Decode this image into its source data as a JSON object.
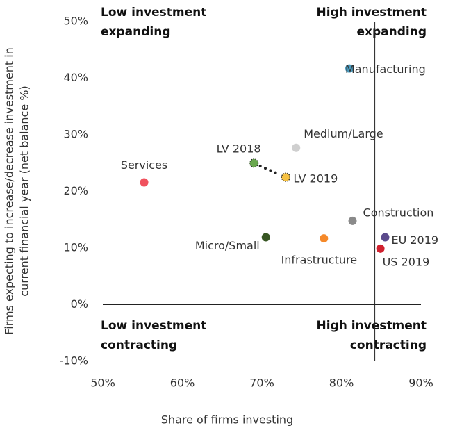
{
  "chart_data": {
    "type": "scatter",
    "x_label": "Share of firms investing",
    "y_label": [
      "Firms expecting to increase/decrease investment in",
      "current financial year  (net balance %)"
    ],
    "annotations": [
      "Low investment",
      "expanding",
      "High investment",
      "expanding",
      "Low investment",
      "contracting",
      "High investment",
      "contracting"
    ],
    "labels": [
      "Manufacturing",
      "Medium/Large",
      "LV 2018",
      "LV 2019",
      "Services",
      "Construction",
      "Micro/Small",
      "Infrastructure",
      "EU 2019",
      "US 2019"
    ],
    "x": [
      81.0,
      74.3,
      69.0,
      73.0,
      55.2,
      81.4,
      70.5,
      77.8,
      85.5,
      84.9
    ],
    "values": [
      41.7,
      27.7,
      25.0,
      22.5,
      21.6,
      14.8,
      11.9,
      11.7,
      11.9,
      9.9
    ],
    "colors": [
      "#4a9cc0",
      "#cfcfcf",
      "#6aa84f",
      "#f6c142",
      "#f0525e",
      "#8a8a8a",
      "#375623",
      "#f5892a",
      "#5b4a8c",
      "#d0202e"
    ],
    "dotted_outline": [
      false,
      false,
      true,
      true,
      false,
      false,
      false,
      false,
      false,
      false
    ],
    "vline": 84.2,
    "xlim": [
      50,
      90
    ],
    "xticks": [
      {
        "value": 50,
        "label": "50%"
      },
      {
        "value": 60,
        "label": "60%"
      },
      {
        "value": 70,
        "label": "70%"
      },
      {
        "value": 80,
        "label": "80%"
      },
      {
        "value": 90,
        "label": "90%"
      }
    ],
    "ylim": [
      -10,
      50
    ],
    "yticks": [
      {
        "value": -10,
        "label": "-10%"
      },
      {
        "value": 0,
        "label": "0%"
      },
      {
        "value": 10,
        "label": "10%"
      },
      {
        "value": 20,
        "label": "20%"
      },
      {
        "value": 30,
        "label": "30%"
      },
      {
        "value": 40,
        "label": "40%"
      },
      {
        "value": 50,
        "label": "50%"
      }
    ]
  }
}
